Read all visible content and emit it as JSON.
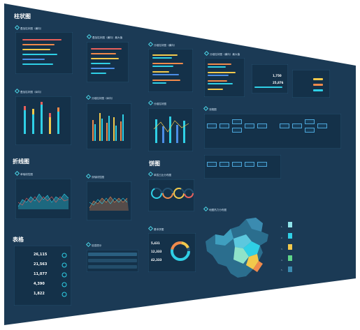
{
  "sections": {
    "bar": "柱状图",
    "line": "折线图",
    "pie": "饼图",
    "table": "表格"
  },
  "cards": {
    "stacked_h": "叠加柱状图（横向）",
    "stacked_h_max": "叠加柱状图（横向）最大值",
    "group_h": "分组柱状图（横向）",
    "group_h_max": "分组柱状图（横向）最大值",
    "stacked_v": "叠加柱状图（纵向）",
    "group_v": "分组柱状图（纵向）",
    "group_v2": "分组柱状图",
    "flow": "流程图",
    "line_a": "单轴线性图",
    "line_b": "双轴线性图",
    "pie_a": "单层占比分布图",
    "pie_b": "基本饼图",
    "notice": "信息提示",
    "map": "地图热力分布图"
  },
  "stats": {
    "top_values": [
      "1,750",
      "25,876"
    ],
    "table_values": [
      "26,115",
      "21,563",
      "11,077",
      "4,390",
      "1,822"
    ],
    "ring_values": [
      "5,431",
      "12,333",
      "42,333"
    ]
  },
  "map_legend": [
    "1.",
    "2.",
    "3.",
    "4.",
    "5."
  ],
  "colors": {
    "bg": "#1b3a55",
    "panel": "#143149",
    "cyan": "#2fd0e6",
    "orange": "#f08a4b",
    "yellow": "#f2c94c",
    "green": "#5fd68a",
    "red": "#e8605b"
  }
}
